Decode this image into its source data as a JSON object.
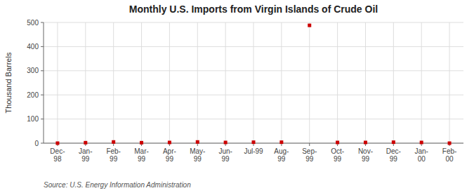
{
  "chart_data": {
    "type": "line",
    "title": "Monthly U.S. Imports from Virgin Islands of Crude Oil",
    "y_label": "Thousand Barrels",
    "source": "Source: U.S. Energy Information Administration",
    "categories": [
      "Dec-\n98",
      "Jan-\n99",
      "Feb-\n99",
      "Mar-\n99",
      "Apr-\n99",
      "May-\n99",
      "Jun-\n99",
      "Jul-99",
      "Aug-\n99",
      "Sep-\n99",
      "Oct-\n99",
      "Nov-\n99",
      "Dec-\n99",
      "Jan-\n00",
      "Feb-\n00"
    ],
    "values": [
      0,
      2,
      5,
      2,
      3,
      5,
      3,
      4,
      4,
      488,
      3,
      3,
      4,
      3,
      0
    ],
    "color": "#cc0000",
    "marker": "square",
    "line_style": "none",
    "ylim": [
      0,
      500
    ],
    "yticks": [
      0,
      100,
      200,
      300,
      400,
      500
    ],
    "grid": true
  }
}
